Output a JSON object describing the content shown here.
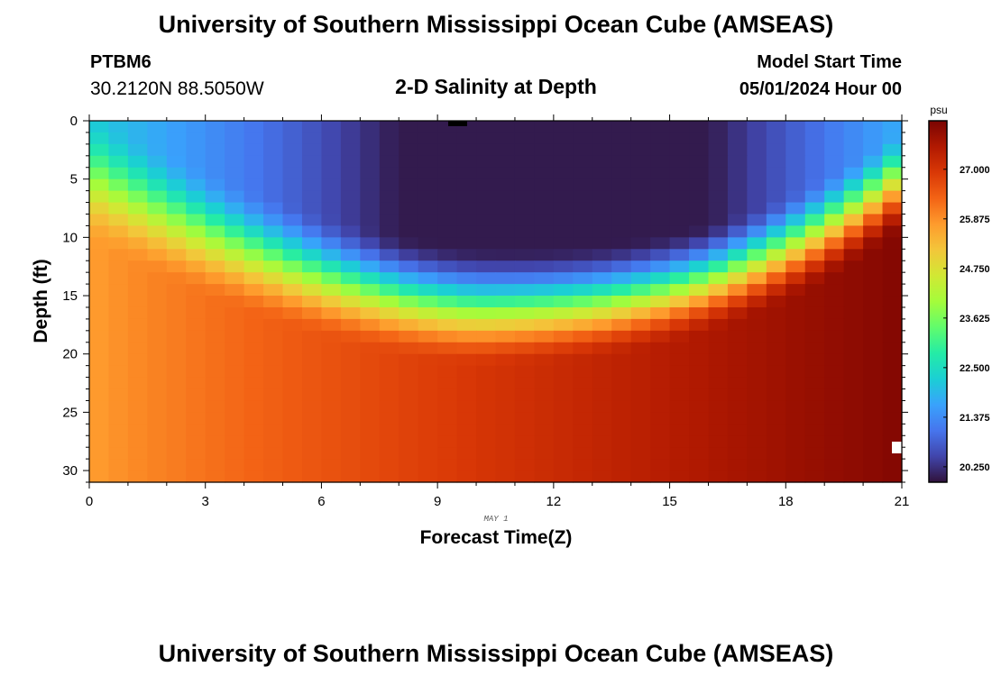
{
  "header": {
    "title": "University of Southern Mississippi Ocean Cube (AMSEAS)",
    "station_id": "PTBM6",
    "coordinates": "30.2120N  88.5050W",
    "chart_title": "2-D Salinity at Depth",
    "model_start_label": "Model Start Time",
    "model_start_value": "05/01/2024 Hour 00"
  },
  "footer": {
    "title": "University of Southern Mississippi Ocean Cube (AMSEAS)"
  },
  "chart_data": {
    "type": "heatmap",
    "title": "2-D Salinity at Depth",
    "xlabel": "Forecast Time(Z)",
    "ylabel": "Depth (ft)",
    "x_sublabel": "MAY 1",
    "xlim": [
      0,
      21
    ],
    "ylim": [
      0,
      31
    ],
    "x_ticks": [
      0,
      3,
      6,
      9,
      12,
      15,
      18,
      21
    ],
    "y_ticks": [
      0,
      5,
      10,
      15,
      20,
      25,
      30
    ],
    "x_cells": 42,
    "y_cells": 31,
    "colorbar": {
      "unit": "psu",
      "min": 19.9,
      "max": 28.1,
      "tick_values": [
        27.0,
        25.875,
        24.75,
        23.625,
        22.5,
        21.375,
        20.25
      ],
      "tick_labels": [
        "27.000",
        "25.875",
        "24.750",
        "23.625",
        "22.500",
        "21.375",
        "20.250"
      ],
      "colors": [
        "#30123b",
        "#4145ab",
        "#4675ed",
        "#39a2fc",
        "#1bcfd4",
        "#24eca6",
        "#61fc6c",
        "#a4fc3b",
        "#d1e834",
        "#f3c63a",
        "#fe9b2d",
        "#f36315",
        "#d93806",
        "#b11901",
        "#7a0402"
      ]
    },
    "field_model": {
      "description": "Low-salinity (about 20.0 psu) fresh surface lens centered near hour 10 deepening to about 16 ft; high-salinity (about 28 psu) water at depth, saltiest near hour 21.",
      "surface_salinity": 20.0,
      "lens_center_hour": 10.2,
      "halocline_shallow_ft": 5.5,
      "halocline_deep_ft": 16.5,
      "deep_salinity_start": 25.7,
      "deep_salinity_end": 28.0
    }
  }
}
